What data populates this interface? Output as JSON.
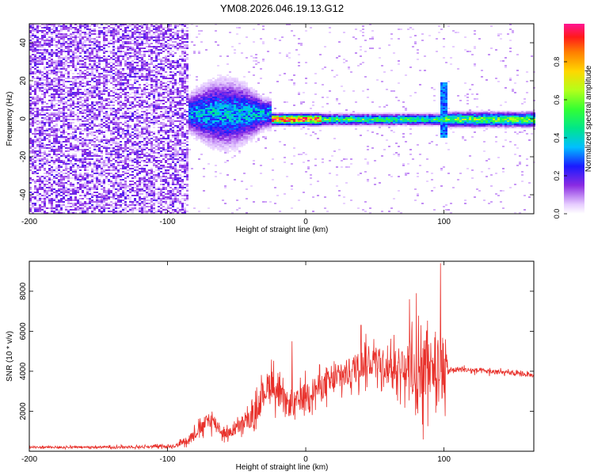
{
  "title": "YM08.2026.046.19.13.G12",
  "chart_data": [
    {
      "type": "heatmap",
      "xlabel": "Height of straight line (km)",
      "ylabel": "Frequency (Hz)",
      "xlim": [
        -200,
        165
      ],
      "ylim": [
        -50,
        50
      ],
      "xticks": [
        -200,
        -100,
        0,
        100
      ],
      "yticks": [
        -40,
        -20,
        0,
        20,
        40
      ],
      "colorbar": {
        "label": "Normalized spectral amplitude",
        "range": [
          0.0,
          1.0
        ],
        "ticks": [
          0.0,
          0.2,
          0.4,
          0.6,
          0.8
        ],
        "stops": [
          {
            "v": 0.0,
            "color": "#ffffff"
          },
          {
            "v": 0.05,
            "color": "#e6ccff"
          },
          {
            "v": 0.15,
            "color": "#8a2be2"
          },
          {
            "v": 0.25,
            "color": "#1a1aff"
          },
          {
            "v": 0.35,
            "color": "#00bfff"
          },
          {
            "v": 0.45,
            "color": "#00e68a"
          },
          {
            "v": 0.55,
            "color": "#33ff33"
          },
          {
            "v": 0.65,
            "color": "#b3ff1a"
          },
          {
            "v": 0.75,
            "color": "#ffd700"
          },
          {
            "v": 0.85,
            "color": "#ff7f00"
          },
          {
            "v": 0.93,
            "color": "#ff1a1a"
          },
          {
            "v": 1.0,
            "color": "#ff1493"
          }
        ]
      },
      "regions": [
        {
          "x": [
            -200,
            -85
          ],
          "note": "broadband noise, amplitude 0.05-0.2"
        },
        {
          "x": [
            -88,
            -25
          ],
          "peak_freq_hz": 3,
          "bandwidth_hz": 12,
          "amplitude": 0.35
        },
        {
          "x": [
            -25,
            10
          ],
          "peak_freq_hz": 0,
          "bandwidth_hz": 3,
          "amplitude": 0.9
        },
        {
          "x": [
            10,
            100
          ],
          "peak_freq_hz": 0,
          "bandwidth_hz": 3,
          "amplitude": 0.5
        },
        {
          "x": [
            100,
            165
          ],
          "peak_freq_hz": 0,
          "bandwidth_hz": 4,
          "amplitude": 0.55
        }
      ]
    },
    {
      "type": "line",
      "xlabel": "Height of straight line (km)",
      "ylabel": "SNR (10 * v/v)",
      "xlim": [
        -200,
        165
      ],
      "ylim": [
        0,
        9500
      ],
      "xticks": [
        -200,
        -100,
        0,
        100
      ],
      "yticks": [
        2000,
        4000,
        6000,
        8000
      ],
      "color": "#e8302a",
      "series": [
        {
          "name": "SNR",
          "x": [
            -200,
            -160,
            -120,
            -95,
            -85,
            -75,
            -70,
            -65,
            -60,
            -55,
            -45,
            -40,
            -35,
            -30,
            -25,
            -20,
            -15,
            -10,
            -5,
            0,
            10,
            20,
            30,
            40,
            50,
            60,
            70,
            80,
            90,
            95,
            100,
            103,
            110,
            130,
            150,
            165
          ],
          "y": [
            200,
            200,
            220,
            250,
            600,
            1200,
            1600,
            1400,
            900,
            900,
            1400,
            1600,
            2200,
            3000,
            3500,
            2800,
            2400,
            2300,
            2500,
            2900,
            3200,
            3500,
            3900,
            4300,
            4600,
            4300,
            4200,
            4100,
            4300,
            4600,
            4300,
            4000,
            4100,
            4000,
            3900,
            3800
          ],
          "spread": [
            100,
            100,
            120,
            150,
            400,
            700,
            900,
            700,
            500,
            500,
            800,
            900,
            1200,
            1400,
            1500,
            1400,
            1200,
            1200,
            1200,
            1200,
            1300,
            1300,
            1400,
            1500,
            1500,
            1400,
            2000,
            3000,
            3200,
            3000,
            3500,
            300,
            250,
            250,
            200,
            200
          ]
        }
      ],
      "spikes": [
        {
          "x": 97.5,
          "y": 9400
        },
        {
          "x": 80,
          "y": 7900
        },
        {
          "x": 75,
          "y": 7600
        },
        {
          "x": 40,
          "y": 6300
        },
        {
          "x": -10,
          "y": 5500
        }
      ]
    }
  ]
}
